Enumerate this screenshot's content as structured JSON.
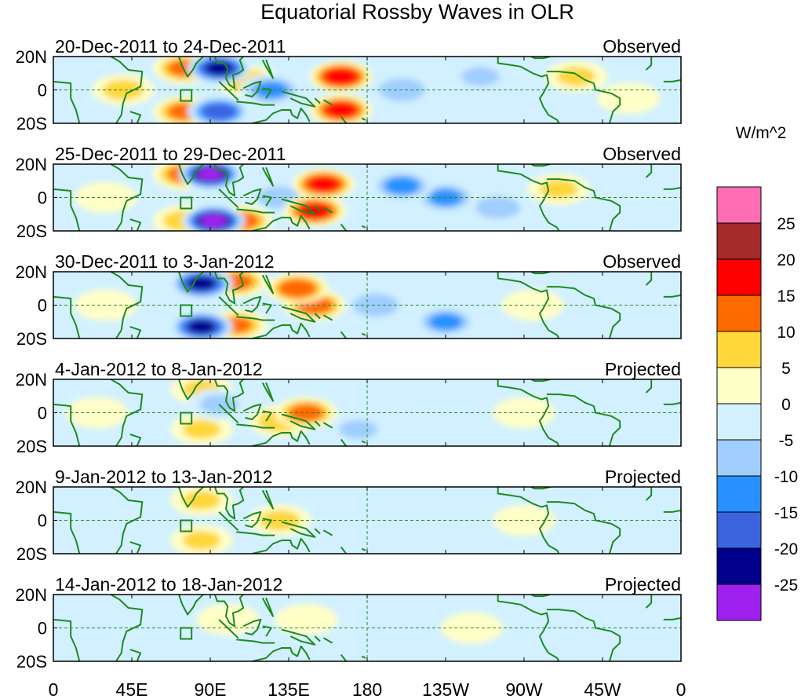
{
  "chart_data": {
    "type": "heatmap",
    "title": "Equatorial Rossby Waves in OLR",
    "units": "W/m^2",
    "x_ticks": [
      "0",
      "45E",
      "90E",
      "135E",
      "180",
      "135W",
      "90W",
      "45W",
      "0"
    ],
    "y_ticks": [
      "20N",
      "0",
      "20S"
    ],
    "colorbar": {
      "labels": [
        "25",
        "20",
        "15",
        "10",
        "5",
        "0",
        "-5",
        "-10",
        "-15",
        "-20",
        "-25"
      ],
      "colors": [
        "#ff6eb4",
        "#a52a2a",
        "#ff0000",
        "#ff6a00",
        "#ffd73a",
        "#ffffc8",
        "#d2f0ff",
        "#a0ceff",
        "#2891ff",
        "#3c64e0",
        "#00008c",
        "#a020f0"
      ]
    },
    "panels": [
      {
        "period": "20-Dec-2011 to 24-Dec-2011",
        "kind": "Observed",
        "anomalies": [
          {
            "lon": 40,
            "lat": 0,
            "v": 7
          },
          {
            "lon": 75,
            "lat": 13,
            "v": 12
          },
          {
            "lon": 75,
            "lat": -13,
            "v": 12
          },
          {
            "lon": 95,
            "lat": 13,
            "v": -22
          },
          {
            "lon": 95,
            "lat": -13,
            "v": -18
          },
          {
            "lon": 112,
            "lat": 5,
            "v": 10
          },
          {
            "lon": 125,
            "lat": 0,
            "v": -12
          },
          {
            "lon": 165,
            "lat": 8,
            "v": 20
          },
          {
            "lon": 165,
            "lat": -12,
            "v": 18
          },
          {
            "lon": 200,
            "lat": 0,
            "v": -10
          },
          {
            "lon": 245,
            "lat": 8,
            "v": -6
          },
          {
            "lon": 300,
            "lat": 8,
            "v": 6
          },
          {
            "lon": 330,
            "lat": -5,
            "v": 5
          }
        ]
      },
      {
        "period": "25-Dec-2011 to 29-Dec-2011",
        "kind": "Observed",
        "anomalies": [
          {
            "lon": 30,
            "lat": 0,
            "v": 5
          },
          {
            "lon": 75,
            "lat": 14,
            "v": 12
          },
          {
            "lon": 75,
            "lat": -14,
            "v": 8
          },
          {
            "lon": 90,
            "lat": 14,
            "v": -26
          },
          {
            "lon": 92,
            "lat": -14,
            "v": -27
          },
          {
            "lon": 108,
            "lat": -14,
            "v": 13
          },
          {
            "lon": 130,
            "lat": 0,
            "v": -9
          },
          {
            "lon": 155,
            "lat": 8,
            "v": 18
          },
          {
            "lon": 150,
            "lat": -8,
            "v": 18
          },
          {
            "lon": 200,
            "lat": 7,
            "v": -13
          },
          {
            "lon": 225,
            "lat": 0,
            "v": -12
          },
          {
            "lon": 255,
            "lat": -6,
            "v": -9
          },
          {
            "lon": 290,
            "lat": 5,
            "v": 6
          }
        ]
      },
      {
        "period": "30-Dec-2011 to 3-Jan-2012",
        "kind": "Observed",
        "anomalies": [
          {
            "lon": 30,
            "lat": 0,
            "v": 5
          },
          {
            "lon": 85,
            "lat": 13,
            "v": -22
          },
          {
            "lon": 85,
            "lat": -13,
            "v": -22
          },
          {
            "lon": 105,
            "lat": 14,
            "v": 12
          },
          {
            "lon": 105,
            "lat": -12,
            "v": 11
          },
          {
            "lon": 140,
            "lat": 10,
            "v": 15
          },
          {
            "lon": 150,
            "lat": 0,
            "v": 14
          },
          {
            "lon": 185,
            "lat": 0,
            "v": -10
          },
          {
            "lon": 225,
            "lat": -10,
            "v": -12
          },
          {
            "lon": 275,
            "lat": 0,
            "v": 5
          },
          {
            "lon": 320,
            "lat": 5,
            "v": -5
          }
        ]
      },
      {
        "period": "4-Jan-2012 to 8-Jan-2012",
        "kind": "Projected",
        "anomalies": [
          {
            "lon": 25,
            "lat": 0,
            "v": 4
          },
          {
            "lon": 85,
            "lat": 14,
            "v": 6
          },
          {
            "lon": 85,
            "lat": -10,
            "v": 6
          },
          {
            "lon": 95,
            "lat": 5,
            "v": -6
          },
          {
            "lon": 130,
            "lat": -5,
            "v": 9
          },
          {
            "lon": 145,
            "lat": 0,
            "v": 13
          },
          {
            "lon": 175,
            "lat": -10,
            "v": -6
          },
          {
            "lon": 220,
            "lat": 0,
            "v": -4
          },
          {
            "lon": 270,
            "lat": 0,
            "v": 3
          }
        ]
      },
      {
        "period": "9-Jan-2012 to 13-Jan-2012",
        "kind": "Projected",
        "anomalies": [
          {
            "lon": 85,
            "lat": 12,
            "v": 6
          },
          {
            "lon": 85,
            "lat": -12,
            "v": 6
          },
          {
            "lon": 100,
            "lat": 3,
            "v": -5
          },
          {
            "lon": 130,
            "lat": 0,
            "v": 7
          },
          {
            "lon": 160,
            "lat": 0,
            "v": -4
          },
          {
            "lon": 200,
            "lat": 0,
            "v": -4
          },
          {
            "lon": 270,
            "lat": 0,
            "v": 3
          }
        ]
      },
      {
        "period": "14-Jan-2012 to 18-Jan-2012",
        "kind": "Projected",
        "anomalies": [
          {
            "lon": 100,
            "lat": 5,
            "v": 3
          },
          {
            "lon": 145,
            "lat": 5,
            "v": 4
          },
          {
            "lon": 175,
            "lat": 0,
            "v": -3
          },
          {
            "lon": 240,
            "lat": 0,
            "v": 3
          },
          {
            "lon": 300,
            "lat": 0,
            "v": -3
          }
        ]
      }
    ]
  }
}
